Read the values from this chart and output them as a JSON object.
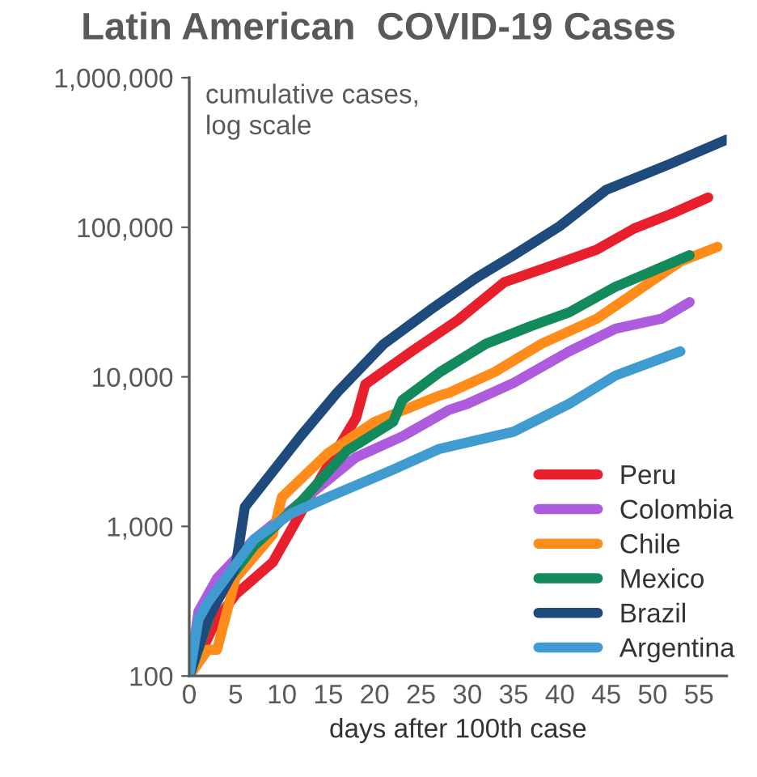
{
  "chart_data": {
    "type": "line",
    "title": "Latin American  COVID-19 Cases",
    "xlabel": "days after 100th case",
    "annotations": [
      "cumulative cases,\nlog scale"
    ],
    "log": "y",
    "grid": false,
    "legend": "bottom right",
    "marker": "none",
    "line_style": "solid",
    "xlim": [
      0,
      58
    ],
    "xticks": [
      0,
      5,
      10,
      15,
      20,
      25,
      30,
      35,
      40,
      45,
      50,
      55
    ],
    "ylim": [
      100,
      1000000
    ],
    "yticks": [
      {
        "value": 100,
        "label": "100"
      },
      {
        "value": 1000,
        "label": "1,000"
      },
      {
        "value": 10000,
        "label": "10,000"
      },
      {
        "value": 100000,
        "label": "100,000"
      },
      {
        "value": 1000000,
        "label": "1,000,000"
      }
    ],
    "series": [
      {
        "name": "Peru",
        "color": "#e8202e",
        "x": [
          0,
          3,
          5,
          9,
          13,
          16,
          18,
          19,
          24,
          29,
          34,
          39,
          44,
          48,
          52,
          56
        ],
        "values": [
          100,
          240,
          350,
          575,
          1570,
          3300,
          5300,
          8900,
          14800,
          24000,
          43000,
          55000,
          71000,
          98000,
          123000,
          158000
        ]
      },
      {
        "name": "Colombia",
        "color": "#ac5cdc",
        "x": [
          0,
          1,
          3,
          7,
          12,
          18,
          23,
          28,
          30,
          35,
          41,
          46,
          51,
          54
        ],
        "values": [
          100,
          270,
          450,
          820,
          1450,
          2900,
          4000,
          6000,
          6600,
          9100,
          14800,
          21000,
          24500,
          31600
        ]
      },
      {
        "name": "Chile",
        "color": "#ff8c1a",
        "x": [
          0,
          2,
          3,
          5,
          9,
          10,
          15,
          20,
          27,
          28,
          33,
          38,
          44,
          49,
          53,
          57
        ],
        "values": [
          100,
          150,
          150,
          450,
          880,
          1570,
          3100,
          5000,
          7500,
          7800,
          10800,
          16600,
          24500,
          40000,
          59000,
          74000
        ]
      },
      {
        "name": "Mexico",
        "color": "#138a5c",
        "x": [
          0,
          3,
          7,
          12,
          17,
          22,
          23,
          27,
          32,
          37,
          41,
          46,
          49,
          54
        ],
        "values": [
          100,
          350,
          740,
          1450,
          3200,
          5000,
          7000,
          10700,
          16600,
          22000,
          27000,
          40000,
          48000,
          65000
        ]
      },
      {
        "name": "Brazil",
        "color": "#1f4a7c",
        "x": [
          0,
          2,
          5,
          6,
          12,
          16,
          21,
          26,
          31,
          35,
          40,
          45,
          52,
          58
        ],
        "values": [
          100,
          240,
          535,
          1350,
          4000,
          7900,
          16600,
          28000,
          46000,
          65000,
          102000,
          178000,
          267000,
          386000
        ]
      },
      {
        "name": "Argentina",
        "color": "#3f9bd0",
        "x": [
          0,
          1,
          2,
          7,
          11,
          15,
          22,
          27,
          35,
          41,
          46,
          53
        ],
        "values": [
          100,
          240,
          310,
          820,
          1220,
          1570,
          2400,
          3300,
          4300,
          6600,
          10200,
          14800
        ]
      }
    ]
  }
}
